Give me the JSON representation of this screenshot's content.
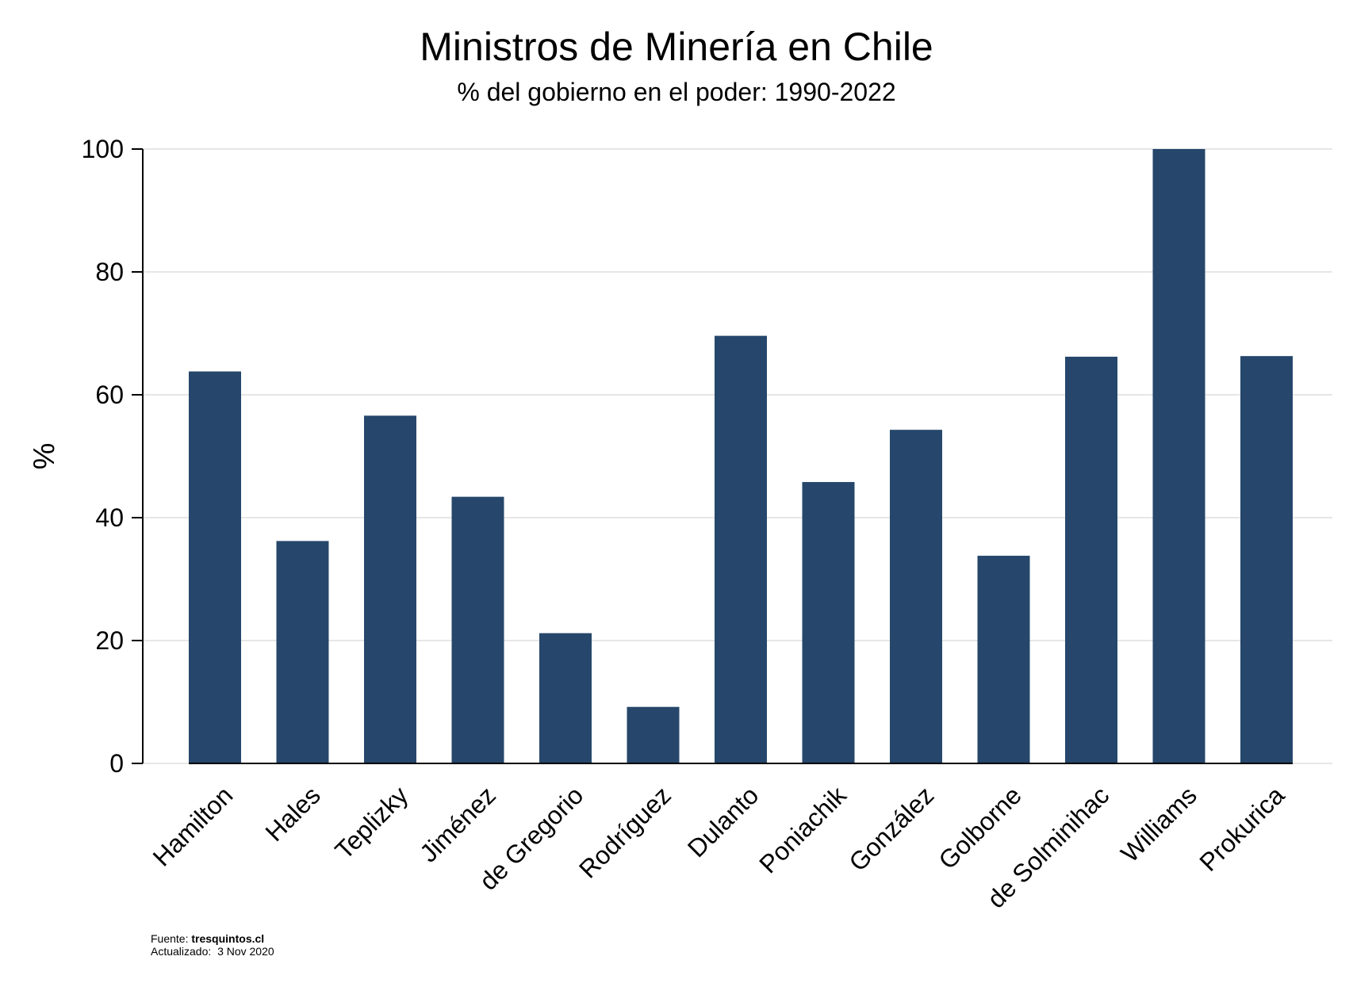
{
  "title": "Ministros de Minería en Chile",
  "subtitle": "% del gobierno en el poder: 1990-2022",
  "footer": {
    "source_label": "Fuente:",
    "source_value": "tresquintos.cl",
    "updated_label": "Actualizado:",
    "updated_value": "3 Nov 2020"
  },
  "colors": {
    "bar": "#26476b",
    "grid": "#e6e6e6",
    "axis": "#000000"
  },
  "chart_data": {
    "type": "bar",
    "title": "Ministros de Minería en Chile",
    "subtitle": "% del gobierno en el poder: 1990-2022",
    "xlabel": "",
    "ylabel": "%",
    "ylim": [
      0,
      100
    ],
    "yticks": [
      0,
      20,
      40,
      60,
      80,
      100
    ],
    "grid": true,
    "categories": [
      "Hamilton",
      "Hales",
      "Teplizky",
      "Jiménez",
      "de Gregorio",
      "Rodríguez",
      "Dulanto",
      "Poniachik",
      "González",
      "Golborne",
      "de Solminihac",
      "Williams",
      "Prokurica"
    ],
    "values": [
      63.8,
      36.2,
      56.6,
      43.4,
      21.2,
      9.2,
      69.6,
      45.8,
      54.3,
      33.8,
      66.2,
      100,
      66.3
    ]
  }
}
